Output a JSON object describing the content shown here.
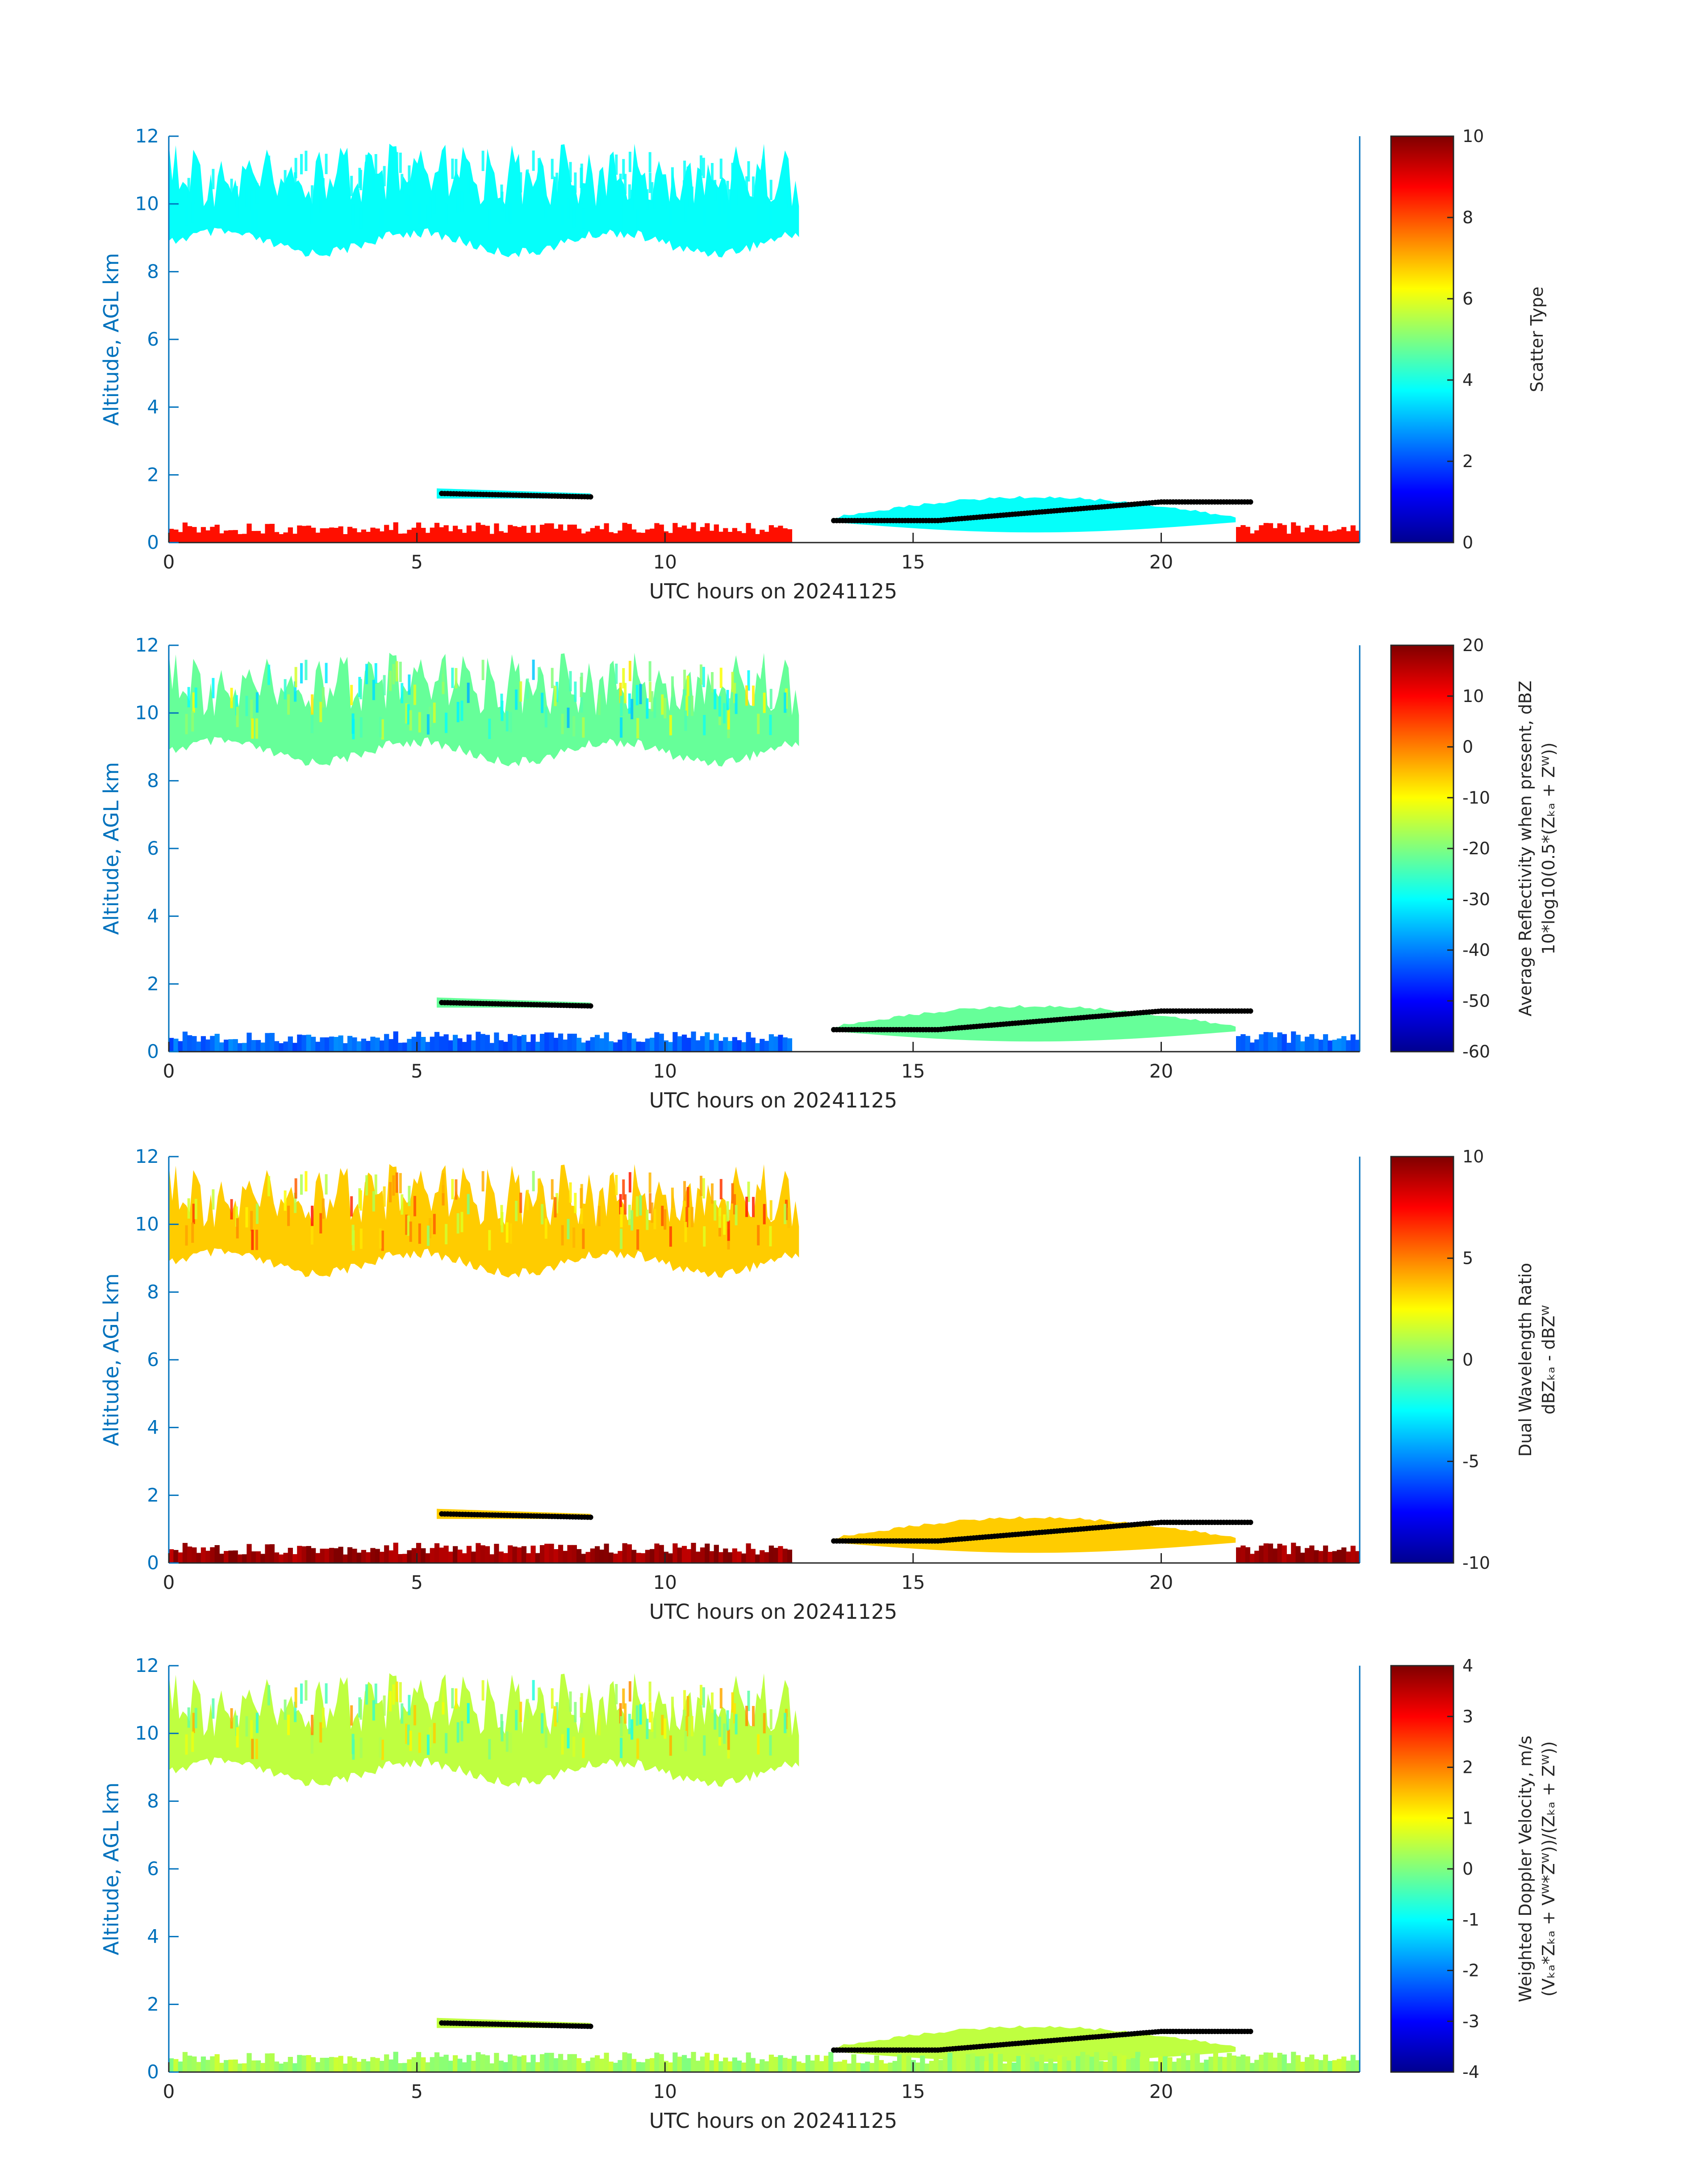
{
  "chart_data": [
    {
      "type": "heatmap",
      "ylabel": "Altitude, AGL km",
      "xlabel": "UTC hours on 20241125",
      "xlim": [
        0,
        24
      ],
      "ylim": [
        0,
        12
      ],
      "xticks": [
        "0",
        "5",
        "10",
        "15",
        "20"
      ],
      "yticks": [
        "0",
        "2",
        "4",
        "6",
        "8",
        "10",
        "12"
      ],
      "colorbar": {
        "label_lines": [
          "Scatter Type"
        ],
        "range": [
          0,
          10
        ],
        "ticks": [
          "0",
          "2",
          "4",
          "6",
          "8",
          "10"
        ]
      },
      "fill_value": 3.8,
      "low_layer_value": 8.6
    },
    {
      "type": "heatmap",
      "ylabel": "Altitude, AGL km",
      "xlabel": "UTC hours on 20241125",
      "xlim": [
        0,
        24
      ],
      "ylim": [
        0,
        12
      ],
      "xticks": [
        "0",
        "5",
        "10",
        "15",
        "20"
      ],
      "yticks": [
        "0",
        "2",
        "4",
        "6",
        "8",
        "10",
        "12"
      ],
      "colorbar": {
        "label_lines": [
          "Average Reflectivity when present, dBZ",
          "10*log10(0.5*(Zₖₐ + Zᵂ))"
        ],
        "range": [
          -60,
          20
        ],
        "ticks": [
          "-60",
          "-50",
          "-40",
          "-30",
          "-20",
          "-10",
          "0",
          "10",
          "20"
        ]
      },
      "fill_value": -22,
      "low_layer_value": -42
    },
    {
      "type": "heatmap",
      "ylabel": "Altitude, AGL km",
      "xlabel": "UTC hours on 20241125",
      "xlim": [
        0,
        24
      ],
      "ylim": [
        0,
        12
      ],
      "xticks": [
        "0",
        "5",
        "10",
        "15",
        "20"
      ],
      "yticks": [
        "0",
        "2",
        "4",
        "6",
        "8",
        "10",
        "12"
      ],
      "colorbar": {
        "label_lines": [
          "Dual Wavelength Ratio",
          "dBZₖₐ - dBZᵂ"
        ],
        "range": [
          -10,
          10
        ],
        "ticks": [
          "-10",
          "-5",
          "0",
          "5",
          "10"
        ]
      },
      "fill_value": 3.5,
      "low_layer_value": 9.5
    },
    {
      "type": "heatmap",
      "ylabel": "Altitude, AGL km",
      "xlabel": "UTC hours on 20241125",
      "xlim": [
        0,
        24
      ],
      "ylim": [
        0,
        12
      ],
      "xticks": [
        "0",
        "5",
        "10",
        "15",
        "20"
      ],
      "yticks": [
        "0",
        "2",
        "4",
        "6",
        "8",
        "10",
        "12"
      ],
      "colorbar": {
        "label_lines": [
          "Weighted Doppler Velocity, m/s",
          "(Vₖₐ*Zₖₐ + Vᵂ*Zᵂ))/(Zₖₐ + Zᵂ))"
        ],
        "range": [
          -4,
          4
        ],
        "ticks": [
          "-4",
          "-3",
          "-2",
          "-1",
          "0",
          "1",
          "2",
          "3",
          "4"
        ]
      },
      "fill_value": 0.5,
      "low_layer_value": 0.3
    }
  ],
  "cloud_features": {
    "cirrus": {
      "t_start": 0.0,
      "t_end": 12.7,
      "bottom_km": 9.0,
      "top_km": 11.5
    },
    "low_cloud_1": {
      "t_start": 5.4,
      "t_end": 8.5,
      "bottom_km": 1.25,
      "top_km": 1.6
    },
    "low_cloud_2": {
      "t_start": 13.4,
      "t_end": 21.5,
      "bottom_km": 0.4,
      "top_km": 1.3
    },
    "surface_layer": {
      "t_start": 0.0,
      "t_end": 24.0,
      "bottom_km": 0.0,
      "top_km": 0.6
    }
  }
}
